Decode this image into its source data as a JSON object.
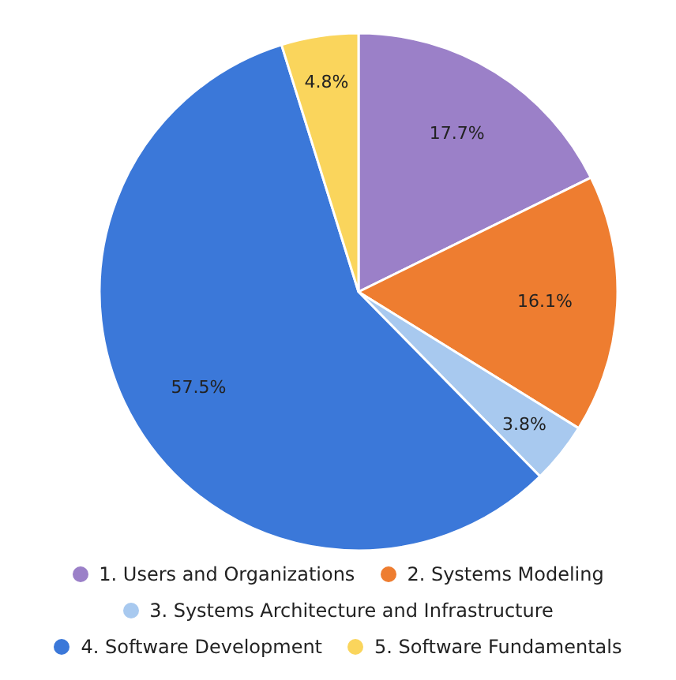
{
  "chart_data": {
    "type": "pie",
    "categories": [
      "1. Users and Organizations",
      "2. Systems Modeling",
      "3. Systems Architecture and Infrastructure",
      "4. Software Development",
      "5. Software Fundamentals"
    ],
    "values": [
      17.7,
      16.1,
      3.8,
      57.5,
      4.8
    ],
    "colors": [
      "#9b80c8",
      "#ee7d30",
      "#a8c9ef",
      "#3b78d9",
      "#fad55c"
    ],
    "value_labels": [
      "17.7%",
      "16.1%",
      "3.8%",
      "57.5%",
      "4.8%"
    ],
    "legend": "bottom"
  }
}
